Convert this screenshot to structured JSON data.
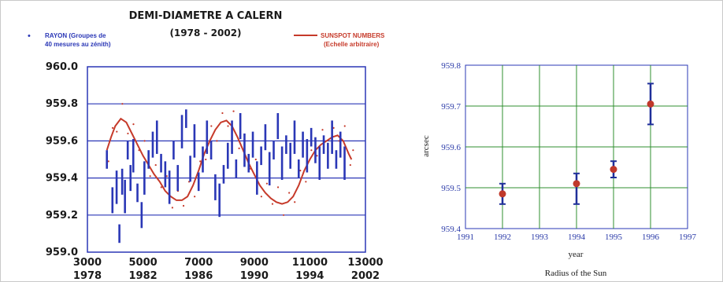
{
  "left_chart": {
    "chart_data": {
      "type": "scatter",
      "title": "DEMI-DIAMETRE  A  CALERN",
      "subtitle": "(1978 - 2002)",
      "xlim": [
        3000,
        13000
      ],
      "ylim": [
        959.0,
        960.0
      ],
      "x_ticks": [
        "3000",
        "5000",
        "7000",
        "9000",
        "11000",
        "13000"
      ],
      "y_ticks": [
        "959.0",
        "959.2",
        "959.4",
        "959.6",
        "959.8",
        "960.0"
      ],
      "year_labels": [
        {
          "x": 3000,
          "label": "1978"
        },
        {
          "x": 5000,
          "label": "1982"
        },
        {
          "x": 7000,
          "label": "1986"
        },
        {
          "x": 9000,
          "label": "1990"
        },
        {
          "x": 11000,
          "label": "1994"
        },
        {
          "x": 13000,
          "label": "2002"
        }
      ],
      "reference_lines_y": [
        959.2,
        959.4,
        959.6,
        959.8
      ],
      "series": [
        {
          "name_line1": "RAYON (Groupes de",
          "name_line2": "40 mesures au zénith)",
          "color": "#2a37b6",
          "points": [
            [
              3700,
              959.5
            ],
            [
              3900,
              959.28
            ],
            [
              4050,
              959.35
            ],
            [
              4150,
              959.1
            ],
            [
              4250,
              959.38
            ],
            [
              4350,
              959.3
            ],
            [
              4450,
              959.55
            ],
            [
              4550,
              959.4
            ],
            [
              4650,
              959.52
            ],
            [
              4800,
              959.32
            ],
            [
              4950,
              959.2
            ],
            [
              5050,
              959.4
            ],
            [
              5200,
              959.5
            ],
            [
              5350,
              959.58
            ],
            [
              5500,
              959.62
            ],
            [
              5650,
              959.48
            ],
            [
              5800,
              959.42
            ],
            [
              5950,
              959.35
            ],
            [
              6100,
              959.55
            ],
            [
              6250,
              959.4
            ],
            [
              6400,
              959.65
            ],
            [
              6550,
              959.72
            ],
            [
              6700,
              959.45
            ],
            [
              6850,
              959.6
            ],
            [
              7000,
              959.38
            ],
            [
              7150,
              959.5
            ],
            [
              7300,
              959.62
            ],
            [
              7450,
              959.55
            ],
            [
              7600,
              959.35
            ],
            [
              7750,
              959.28
            ],
            [
              7900,
              959.42
            ],
            [
              8050,
              959.52
            ],
            [
              8200,
              959.62
            ],
            [
              8350,
              959.45
            ],
            [
              8500,
              959.68
            ],
            [
              8650,
              959.55
            ],
            [
              8800,
              959.48
            ],
            [
              8950,
              959.58
            ],
            [
              9100,
              959.4
            ],
            [
              9250,
              959.52
            ],
            [
              9400,
              959.62
            ],
            [
              9550,
              959.45
            ],
            [
              9700,
              959.55
            ],
            [
              9850,
              959.68
            ],
            [
              10000,
              959.48
            ],
            [
              10150,
              959.58
            ],
            [
              10300,
              959.52
            ],
            [
              10450,
              959.62
            ],
            [
              10600,
              959.45
            ],
            [
              10750,
              959.58
            ],
            [
              10900,
              959.52
            ],
            [
              11050,
              959.62
            ],
            [
              11200,
              959.55
            ],
            [
              11350,
              959.48
            ],
            [
              11500,
              959.58
            ],
            [
              11650,
              959.52
            ],
            [
              11800,
              959.62
            ],
            [
              11950,
              959.5
            ],
            [
              12100,
              959.58
            ],
            [
              12250,
              959.48
            ]
          ]
        },
        {
          "name_line1": "SUNSPOT NUMBERS",
          "name_line2": "(Echelle arbitraire)",
          "color": "#c63a2a",
          "points": [
            [
              3700,
              959.55
            ],
            [
              3850,
              959.62
            ],
            [
              4000,
              959.68
            ],
            [
              4200,
              959.72
            ],
            [
              4400,
              959.7
            ],
            [
              4600,
              959.64
            ],
            [
              4800,
              959.58
            ],
            [
              5000,
              959.52
            ],
            [
              5200,
              959.47
            ],
            [
              5400,
              959.42
            ],
            [
              5600,
              959.38
            ],
            [
              5800,
              959.33
            ],
            [
              6000,
              959.3
            ],
            [
              6200,
              959.28
            ],
            [
              6400,
              959.28
            ],
            [
              6600,
              959.3
            ],
            [
              6800,
              959.36
            ],
            [
              7000,
              959.44
            ],
            [
              7200,
              959.53
            ],
            [
              7400,
              959.6
            ],
            [
              7600,
              959.66
            ],
            [
              7800,
              959.7
            ],
            [
              8000,
              959.71
            ],
            [
              8200,
              959.68
            ],
            [
              8400,
              959.62
            ],
            [
              8600,
              959.55
            ],
            [
              8800,
              959.48
            ],
            [
              9000,
              959.42
            ],
            [
              9200,
              959.36
            ],
            [
              9400,
              959.32
            ],
            [
              9600,
              959.29
            ],
            [
              9800,
              959.27
            ],
            [
              10000,
              959.26
            ],
            [
              10200,
              959.27
            ],
            [
              10400,
              959.3
            ],
            [
              10600,
              959.36
            ],
            [
              10800,
              959.44
            ],
            [
              11000,
              959.5
            ],
            [
              11200,
              959.55
            ],
            [
              11400,
              959.58
            ],
            [
              11600,
              959.6
            ],
            [
              11800,
              959.62
            ],
            [
              12000,
              959.63
            ],
            [
              12200,
              959.6
            ],
            [
              12400,
              959.53
            ],
            [
              12500,
              959.5
            ]
          ]
        }
      ]
    }
  },
  "right_chart": {
    "chart_data": {
      "type": "scatter",
      "title": "Radius of the Sun",
      "xlabel": "year",
      "ylabel": "arcsec",
      "xlim": [
        1991,
        1997
      ],
      "ylim": [
        959.4,
        959.8
      ],
      "x_ticks": [
        "1991",
        "1992",
        "1993",
        "1994",
        "1995",
        "1996",
        "1997"
      ],
      "y_ticks": [
        "959.4",
        "959.5",
        "959.6",
        "959.7",
        "959.8"
      ],
      "grid": true,
      "points": [
        {
          "x": 1992,
          "y": 959.485,
          "err_low": 959.46,
          "err_high": 959.51
        },
        {
          "x": 1994,
          "y": 959.51,
          "err_low": 959.46,
          "err_high": 959.535
        },
        {
          "x": 1995,
          "y": 959.545,
          "err_low": 959.525,
          "err_high": 959.565
        },
        {
          "x": 1996,
          "y": 959.705,
          "err_low": 959.655,
          "err_high": 959.755
        }
      ]
    }
  },
  "colors": {
    "blue": "#2a37b6",
    "red": "#c63a2a",
    "grid_green": "#2f8f2f",
    "marker_red": "#c0392b"
  }
}
